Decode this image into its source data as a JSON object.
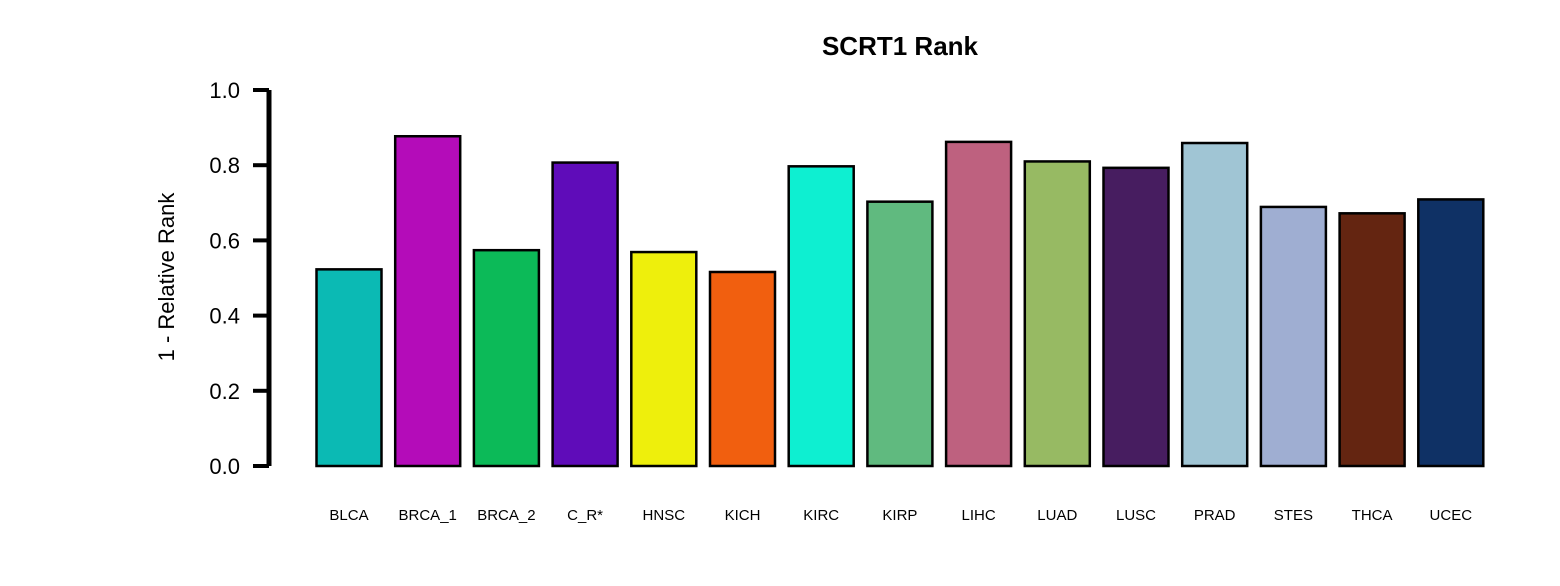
{
  "chart_data": {
    "type": "bar",
    "title": "SCRT1 Rank",
    "xlabel": "",
    "ylabel": "1 - Relative Rank",
    "ylim": [
      0,
      1
    ],
    "yticks": [
      "0.0",
      "0.2",
      "0.4",
      "0.6",
      "0.8",
      "1.0"
    ],
    "grid": false,
    "categories": [
      "BLCA",
      "BRCA_1",
      "BRCA_2",
      "C_R*",
      "HNSC",
      "KICH",
      "KIRC",
      "KIRP",
      "LIHC",
      "LUAD",
      "LUSC",
      "PRAD",
      "STES",
      "THCA",
      "UCEC"
    ],
    "values": [
      0.523,
      0.877,
      0.574,
      0.807,
      0.569,
      0.516,
      0.797,
      0.703,
      0.862,
      0.81,
      0.793,
      0.859,
      0.689,
      0.672,
      0.709
    ],
    "colors": [
      "#0BBAB4",
      "#B40CB9",
      "#0CBA58",
      "#5F0CB9",
      "#EEEF0C",
      "#F15F0F",
      "#0EEFD1",
      "#60BA7F",
      "#BE617F",
      "#97BA63",
      "#471D60",
      "#A0C5D4",
      "#9FAED2",
      "#642511",
      "#0F3165"
    ]
  }
}
